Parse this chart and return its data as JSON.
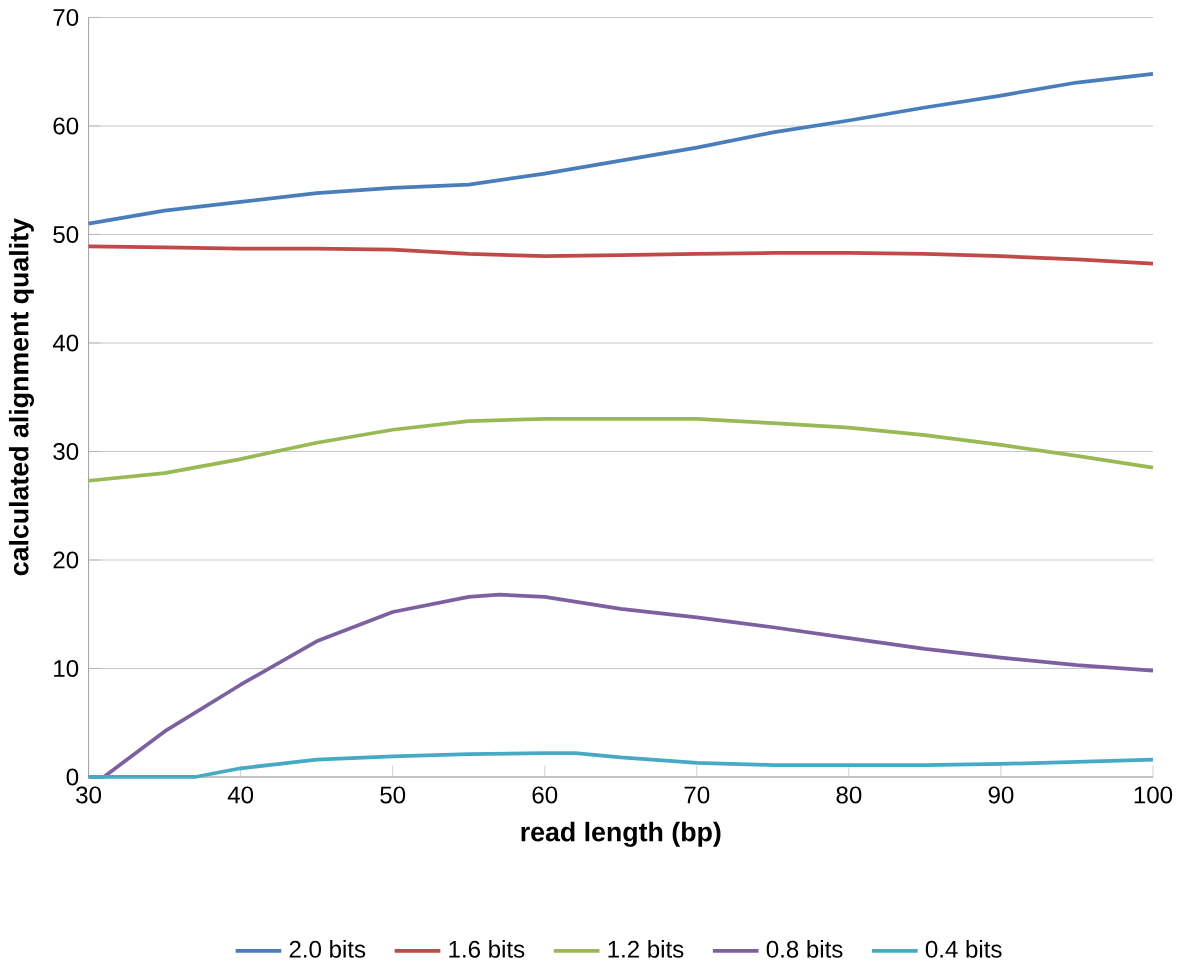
{
  "chart_data": {
    "type": "line",
    "xlabel": "read length (bp)",
    "ylabel": "calculated alignment quality",
    "xlim": [
      30,
      100
    ],
    "xticks": [
      30,
      40,
      50,
      60,
      70,
      80,
      90,
      100
    ],
    "ylim": [
      0,
      70
    ],
    "yticks": [
      0,
      10,
      20,
      30,
      40,
      50,
      60,
      70
    ],
    "grid": "y",
    "legend": "bottom",
    "marker": "none",
    "line_style": "solid",
    "series": [
      {
        "name": "2.0 bits",
        "color": "#4a7ebb",
        "x": [
          30,
          35,
          40,
          45,
          50,
          55,
          60,
          65,
          70,
          75,
          80,
          85,
          90,
          95,
          100
        ],
        "values": [
          51,
          52.2,
          53,
          53.8,
          54.3,
          54.6,
          55.6,
          56.8,
          58,
          59.4,
          60.5,
          61.7,
          62.8,
          64,
          64.8
        ]
      },
      {
        "name": "1.6 bits",
        "color": "#be4b48",
        "x": [
          30,
          35,
          40,
          45,
          50,
          55,
          60,
          65,
          70,
          75,
          80,
          85,
          90,
          95,
          100
        ],
        "values": [
          48.9,
          48.8,
          48.7,
          48.7,
          48.6,
          48.2,
          48,
          48.1,
          48.2,
          48.3,
          48.3,
          48.2,
          48,
          47.7,
          47.3
        ]
      },
      {
        "name": "1.2 bits",
        "color": "#98b954",
        "x": [
          30,
          35,
          40,
          45,
          50,
          55,
          60,
          65,
          70,
          75,
          80,
          85,
          90,
          95,
          100
        ],
        "values": [
          27.3,
          28,
          29.3,
          30.8,
          32,
          32.8,
          33,
          33,
          33,
          32.6,
          32.2,
          31.5,
          30.6,
          29.6,
          28.5
        ]
      },
      {
        "name": "0.8 bits",
        "color": "#7d60a0",
        "x": [
          30,
          31,
          35,
          40,
          45,
          50,
          55,
          57,
          60,
          65,
          70,
          75,
          80,
          85,
          90,
          95,
          100
        ],
        "values": [
          0,
          0,
          4.2,
          8.5,
          12.5,
          15.2,
          16.6,
          16.8,
          16.6,
          15.5,
          14.7,
          13.8,
          12.8,
          11.8,
          11,
          10.3,
          9.8
        ]
      },
      {
        "name": "0.4 bits",
        "color": "#46aac5",
        "x": [
          30,
          37,
          40,
          45,
          50,
          55,
          60,
          62,
          65,
          70,
          75,
          80,
          85,
          90,
          95,
          100
        ],
        "values": [
          0,
          0,
          0.8,
          1.6,
          1.9,
          2.1,
          2.2,
          2.2,
          1.8,
          1.3,
          1.1,
          1.1,
          1.1,
          1.2,
          1.4,
          1.6
        ]
      }
    ]
  }
}
